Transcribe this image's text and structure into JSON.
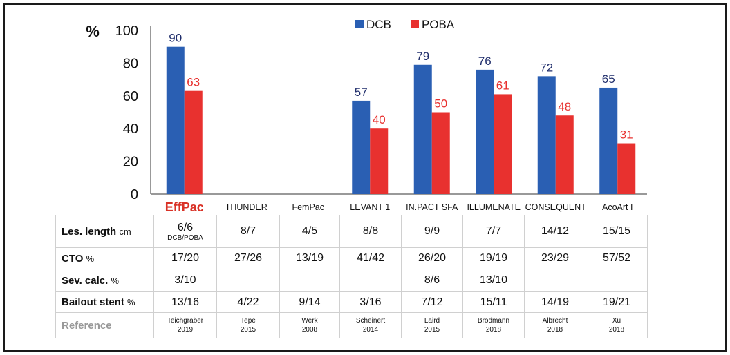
{
  "chart_data": {
    "type": "bar",
    "ylabel": "%",
    "ylim": [
      0,
      100
    ],
    "yticks": [
      0,
      20,
      40,
      60,
      80,
      100
    ],
    "categories": [
      "EffPac",
      "THUNDER",
      "FemPac",
      "LEVANT 1",
      "IN.PACT SFA",
      "ILLUMENATE",
      "CONSEQUENT",
      "AcoArt I"
    ],
    "highlight_category": "EffPac",
    "series": [
      {
        "name": "DCB",
        "color": "#2a5fb3",
        "label_color": "#1f2d6b",
        "values": [
          90,
          null,
          null,
          57,
          79,
          76,
          72,
          65
        ]
      },
      {
        "name": "POBA",
        "color": "#e8312f",
        "label_color": "#e8312f",
        "values": [
          63,
          null,
          null,
          40,
          50,
          61,
          48,
          31
        ]
      }
    ],
    "legend": "top-center",
    "grid": false
  },
  "table": {
    "rows": [
      {
        "label": "Les. length",
        "unit": "cm",
        "cells": [
          "6/6",
          "8/7",
          "4/5",
          "8/8",
          "9/9",
          "7/7",
          "14/12",
          "15/15"
        ],
        "note": "DCB/POBA"
      },
      {
        "label": "CTO",
        "unit": "%",
        "cells": [
          "17/20",
          "27/26",
          "13/19",
          "41/42",
          "26/20",
          "19/19",
          "23/29",
          "57/52"
        ]
      },
      {
        "label": "Sev. calc.",
        "unit": "%",
        "cells": [
          "3/10",
          "",
          "",
          "",
          "8/6",
          "13/10",
          "",
          ""
        ]
      },
      {
        "label": "Bailout stent",
        "unit": "%",
        "cells": [
          "13/16",
          "4/22",
          "9/14",
          "3/16",
          "7/12",
          "15/11",
          "14/19",
          "19/21"
        ]
      }
    ],
    "reference_label": "Reference",
    "references": [
      {
        "author": "Teichgräber",
        "year": "2019"
      },
      {
        "author": "Tepe",
        "year": "2015"
      },
      {
        "author": "Werk",
        "year": "2008"
      },
      {
        "author": "Scheinert",
        "year": "2014"
      },
      {
        "author": "Laird",
        "year": "2015"
      },
      {
        "author": "Brodmann",
        "year": "2018"
      },
      {
        "author": "Albrecht",
        "year": "2018"
      },
      {
        "author": "Xu",
        "year": "2018"
      }
    ]
  }
}
